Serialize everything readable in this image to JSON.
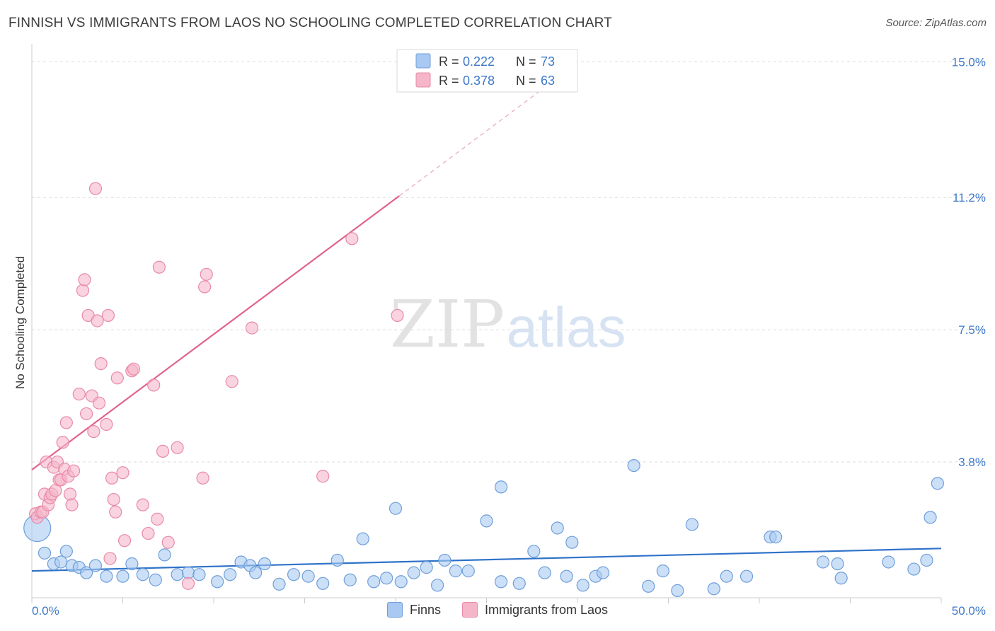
{
  "title": "FINNISH VS IMMIGRANTS FROM LAOS NO SCHOOLING COMPLETED CORRELATION CHART",
  "source": "Source: ZipAtlas.com",
  "watermark": {
    "zip": "ZIP",
    "atlas": "atlas"
  },
  "colors": {
    "blue_fill": "#a9c9f2",
    "blue_stroke": "#6f9fd9",
    "blue_line": "#2f72c9",
    "pink_fill": "#f5b6c9",
    "pink_stroke": "#e88aa8",
    "pink_line": "#e0638f",
    "value_text": "#3e78c8",
    "grid": "#dddddd"
  },
  "legend_top": [
    {
      "r_label": "R =",
      "r_value": "0.222",
      "n_label": "N =",
      "n_value": "73",
      "color": "blue"
    },
    {
      "r_label": "R =",
      "r_value": "0.378",
      "n_label": "N =",
      "n_value": "63",
      "color": "pink"
    }
  ],
  "chart_data": {
    "type": "scatter",
    "xlabel": "",
    "ylabel": "No Schooling Completed",
    "xlim": [
      0,
      50
    ],
    "ylim": [
      0,
      15.5
    ],
    "x_tick_labels": [
      {
        "value": 0,
        "label": "0.0%"
      },
      {
        "value": 50,
        "label": "50.0%"
      }
    ],
    "y_tick_labels": [
      {
        "value": 3.8,
        "label": "3.8%"
      },
      {
        "value": 7.5,
        "label": "7.5%"
      },
      {
        "value": 11.2,
        "label": "11.2%"
      },
      {
        "value": 15.0,
        "label": "15.0%"
      }
    ],
    "grid": true,
    "legend_position": "bottom",
    "series": [
      {
        "name": "Finns",
        "color": "blue",
        "trend": {
          "x": [
            0,
            50
          ],
          "y": [
            0.75,
            1.38
          ],
          "dashed_from": null
        },
        "points": [
          [
            0.3,
            1.95
          ],
          [
            0.7,
            1.25
          ],
          [
            1.2,
            0.95
          ],
          [
            1.6,
            1.0
          ],
          [
            1.9,
            1.3
          ],
          [
            2.2,
            0.9
          ],
          [
            2.6,
            0.85
          ],
          [
            3.0,
            0.7
          ],
          [
            3.5,
            0.9
          ],
          [
            4.1,
            0.6
          ],
          [
            5.0,
            0.6
          ],
          [
            5.5,
            0.95
          ],
          [
            6.1,
            0.65
          ],
          [
            6.8,
            0.5
          ],
          [
            7.3,
            1.2
          ],
          [
            8.0,
            0.65
          ],
          [
            8.6,
            0.7
          ],
          [
            9.2,
            0.65
          ],
          [
            10.2,
            0.45
          ],
          [
            10.9,
            0.65
          ],
          [
            11.5,
            1.0
          ],
          [
            12.0,
            0.9
          ],
          [
            12.3,
            0.7
          ],
          [
            12.8,
            0.95
          ],
          [
            13.6,
            0.38
          ],
          [
            14.4,
            0.65
          ],
          [
            15.2,
            0.6
          ],
          [
            16.0,
            0.4
          ],
          [
            16.8,
            1.05
          ],
          [
            17.5,
            0.5
          ],
          [
            18.2,
            1.65
          ],
          [
            18.8,
            0.45
          ],
          [
            19.5,
            0.55
          ],
          [
            20.0,
            2.5
          ],
          [
            20.3,
            0.45
          ],
          [
            21.0,
            0.7
          ],
          [
            21.7,
            0.85
          ],
          [
            22.3,
            0.35
          ],
          [
            22.7,
            1.05
          ],
          [
            23.3,
            0.75
          ],
          [
            24.0,
            0.75
          ],
          [
            25.0,
            2.15
          ],
          [
            25.8,
            0.45
          ],
          [
            25.8,
            3.1
          ],
          [
            26.8,
            0.4
          ],
          [
            27.6,
            1.3
          ],
          [
            28.2,
            0.7
          ],
          [
            28.9,
            1.95
          ],
          [
            29.4,
            0.6
          ],
          [
            29.7,
            1.55
          ],
          [
            30.3,
            0.35
          ],
          [
            31.0,
            0.6
          ],
          [
            31.4,
            0.7
          ],
          [
            33.1,
            3.7
          ],
          [
            33.9,
            0.32
          ],
          [
            34.7,
            0.75
          ],
          [
            35.5,
            0.2
          ],
          [
            36.3,
            2.05
          ],
          [
            37.5,
            0.25
          ],
          [
            38.2,
            0.6
          ],
          [
            39.3,
            0.6
          ],
          [
            40.6,
            1.7
          ],
          [
            40.9,
            1.7
          ],
          [
            43.5,
            1.0
          ],
          [
            44.3,
            0.95
          ],
          [
            44.5,
            0.55
          ],
          [
            47.1,
            1.0
          ],
          [
            48.5,
            0.8
          ],
          [
            49.2,
            1.05
          ],
          [
            49.4,
            2.25
          ],
          [
            49.8,
            3.2
          ]
        ]
      },
      {
        "name": "Immigrants from Laos",
        "color": "pink",
        "trend": {
          "x": [
            0,
            30.1
          ],
          "y": [
            3.58,
            15.0
          ],
          "dashed_from": 20.2
        },
        "points": [
          [
            0.2,
            2.35
          ],
          [
            0.3,
            2.25
          ],
          [
            0.5,
            2.4
          ],
          [
            0.6,
            2.4
          ],
          [
            0.7,
            2.9
          ],
          [
            0.8,
            3.8
          ],
          [
            0.9,
            2.6
          ],
          [
            1.0,
            2.8
          ],
          [
            1.1,
            2.9
          ],
          [
            1.2,
            3.65
          ],
          [
            1.3,
            3.0
          ],
          [
            1.4,
            3.8
          ],
          [
            1.5,
            3.3
          ],
          [
            1.6,
            3.3
          ],
          [
            1.7,
            4.35
          ],
          [
            1.8,
            3.6
          ],
          [
            1.9,
            4.9
          ],
          [
            2.0,
            3.4
          ],
          [
            2.1,
            2.9
          ],
          [
            2.2,
            2.6
          ],
          [
            2.3,
            3.55
          ],
          [
            2.6,
            5.7
          ],
          [
            2.8,
            8.6
          ],
          [
            2.9,
            8.9
          ],
          [
            3.0,
            5.15
          ],
          [
            3.1,
            7.9
          ],
          [
            3.3,
            5.65
          ],
          [
            3.4,
            4.65
          ],
          [
            3.5,
            11.45
          ],
          [
            3.6,
            7.75
          ],
          [
            3.7,
            5.45
          ],
          [
            3.8,
            6.55
          ],
          [
            4.1,
            4.85
          ],
          [
            4.2,
            7.9
          ],
          [
            4.3,
            1.1
          ],
          [
            4.4,
            3.35
          ],
          [
            4.5,
            2.75
          ],
          [
            4.6,
            2.4
          ],
          [
            4.7,
            6.15
          ],
          [
            5.0,
            3.5
          ],
          [
            5.1,
            1.6
          ],
          [
            5.5,
            6.35
          ],
          [
            5.6,
            6.4
          ],
          [
            6.1,
            2.6
          ],
          [
            6.4,
            1.8
          ],
          [
            6.7,
            5.95
          ],
          [
            6.9,
            2.2
          ],
          [
            7.0,
            9.25
          ],
          [
            7.2,
            4.1
          ],
          [
            7.5,
            1.55
          ],
          [
            8.0,
            4.2
          ],
          [
            8.6,
            0.4
          ],
          [
            9.4,
            3.35
          ],
          [
            9.5,
            8.7
          ],
          [
            9.6,
            9.05
          ],
          [
            11.0,
            6.05
          ],
          [
            12.1,
            7.55
          ],
          [
            16.0,
            3.4
          ],
          [
            17.6,
            10.05
          ],
          [
            20.1,
            7.9
          ]
        ]
      }
    ]
  }
}
